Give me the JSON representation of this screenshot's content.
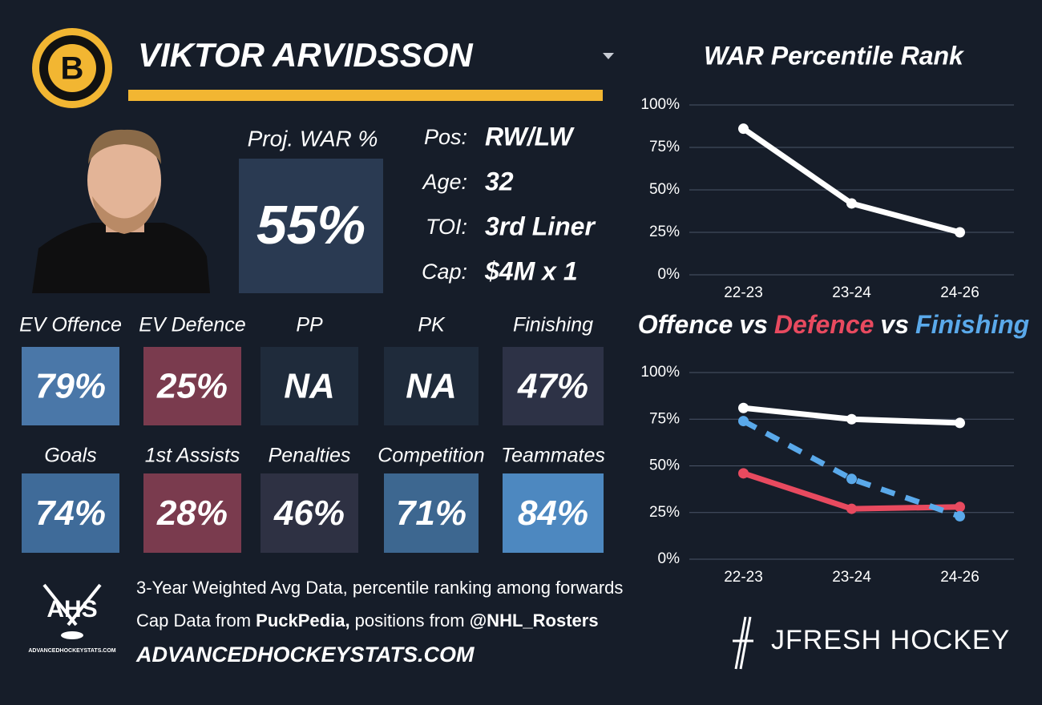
{
  "logos": {
    "team": "B",
    "ahs": "AHS",
    "ahs_site": "ADVANCEDHOCKEYSTATS.COM",
    "brand": "JFRESH HOCKEY"
  },
  "header": {
    "name": "VIKTOR ARVIDSSON"
  },
  "projection": {
    "label": "Proj. WAR %",
    "value": "55%",
    "color": "#2a3a52"
  },
  "info": [
    {
      "label": "Pos:",
      "value": "RW/LW"
    },
    {
      "label": "Age:",
      "value": "32"
    },
    {
      "label": "TOI:",
      "value": "3rd Liner"
    },
    {
      "label": "Cap:",
      "value": "$4M x 1"
    }
  ],
  "tiles": [
    [
      {
        "label": "EV Offence",
        "value": "79%",
        "color": "#4a77a8"
      },
      {
        "label": "EV Defence",
        "value": "25%",
        "color": "#7a3b4e"
      },
      {
        "label": "PP",
        "value": "NA",
        "color": "#1f2b3b"
      },
      {
        "label": "PK",
        "value": "NA",
        "color": "#1f2b3b"
      },
      {
        "label": "Finishing",
        "value": "47%",
        "color": "#2d3246"
      }
    ],
    [
      {
        "label": "Goals",
        "value": "74%",
        "color": "#3f6b99"
      },
      {
        "label": "1st Assists",
        "value": "28%",
        "color": "#7a3b4e"
      },
      {
        "label": "Penalties",
        "value": "46%",
        "color": "#2e3143"
      },
      {
        "label": "Competition",
        "value": "71%",
        "color": "#3d6790"
      },
      {
        "label": "Teammates",
        "value": "84%",
        "color": "#4d88c0"
      }
    ]
  ],
  "footer": {
    "note": "3-Year Weighted Avg Data, percentile ranking among forwards",
    "sources": [
      {
        "text": "Cap Data from ",
        "bold": false
      },
      {
        "text": "PuckPedia,",
        "bold": true
      },
      {
        "text": " positions from ",
        "bold": false
      },
      {
        "text": "@NHL_Rosters",
        "bold": true
      }
    ],
    "site": "ADVANCEDHOCKEYSTATS.COM"
  },
  "chart_data": [
    {
      "type": "line",
      "title": "WAR Percentile Rank",
      "categories": [
        "22-23",
        "23-24",
        "24-26"
      ],
      "series": [
        {
          "color": "#ffffff",
          "values": [
            86,
            42,
            25
          ]
        }
      ],
      "ylim": [
        0,
        100
      ],
      "yticks": [
        {
          "value": 0,
          "label": "0%"
        },
        {
          "value": 25,
          "label": "25%"
        },
        {
          "value": 50,
          "label": "50%"
        },
        {
          "value": 75,
          "label": "75%"
        },
        {
          "value": 100,
          "label": "100%"
        }
      ],
      "grid": true
    },
    {
      "type": "line",
      "title_joiner": "vs",
      "categories": [
        "22-23",
        "23-24",
        "24-26"
      ],
      "series": [
        {
          "name": "Offence",
          "color": "#ffffff",
          "values": [
            81,
            75,
            73
          ]
        },
        {
          "name": "Defence",
          "color": "#e84a5f",
          "values": [
            46,
            27,
            28
          ]
        },
        {
          "name": "Finishing",
          "color": "#5aa9ea",
          "values": [
            74,
            43,
            23
          ],
          "dashed": true
        }
      ],
      "ylim": [
        0,
        100
      ],
      "yticks": [
        {
          "value": 0,
          "label": "0%"
        },
        {
          "value": 25,
          "label": "25%"
        },
        {
          "value": 50,
          "label": "50%"
        },
        {
          "value": 75,
          "label": "75%"
        },
        {
          "value": 100,
          "label": "100%"
        }
      ],
      "grid": true
    }
  ]
}
